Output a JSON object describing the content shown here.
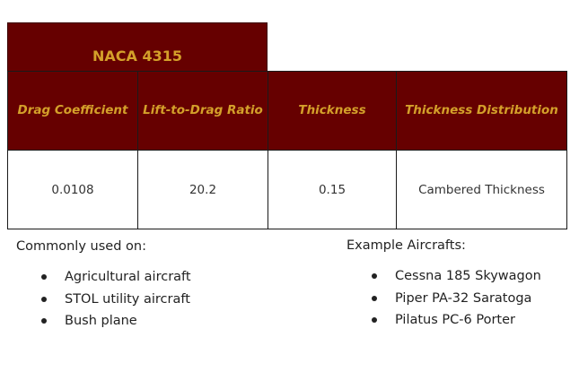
{
  "airfoil": {
    "title": "NACA 4315",
    "headers": [
      "Drag Coefficient",
      "Lift-to-Drag Ratio",
      "Thickness",
      "Thickness Distribution"
    ],
    "values": [
      "0.0108",
      "20.2",
      "0.15",
      "Cambered Thickness"
    ]
  },
  "uses": {
    "heading": "Commonly used on:",
    "items": [
      "Agricultural aircraft",
      "STOL utility aircraft",
      "Bush plane"
    ]
  },
  "examples": {
    "heading": "Example Aircrafts:",
    "items": [
      "Cessna 185 Skywagon",
      "Piper PA-32 Saratoga",
      "Pilatus PC-6 Porter"
    ]
  },
  "colors": {
    "header_bg": "#660000",
    "header_text": "#d4a02a"
  }
}
